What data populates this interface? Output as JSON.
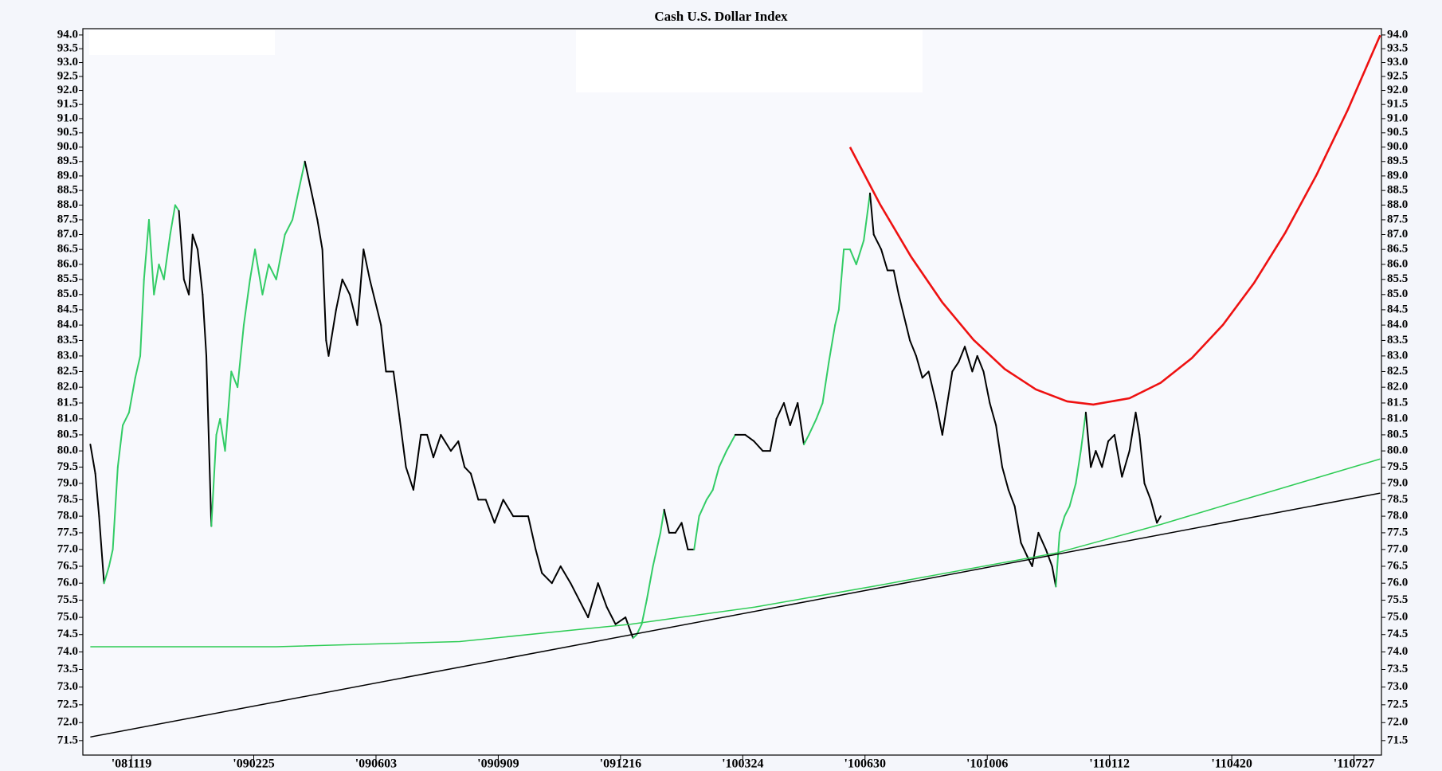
{
  "chart_data": {
    "type": "line",
    "title": "Cash U.S. Dollar Index",
    "log_y": true,
    "xlim": [
      -39,
      1002
    ],
    "xticks": [
      {
        "value": 0,
        "label": "'081119"
      },
      {
        "value": 98,
        "label": "'090225"
      },
      {
        "value": 196,
        "label": "'090603"
      },
      {
        "value": 294,
        "label": "'090909"
      },
      {
        "value": 392,
        "label": "'091216"
      },
      {
        "value": 490,
        "label": "'100324"
      },
      {
        "value": 588,
        "label": "'100630"
      },
      {
        "value": 686,
        "label": "'101006"
      },
      {
        "value": 784,
        "label": "'110112"
      },
      {
        "value": 882,
        "label": "'110420"
      },
      {
        "value": 980,
        "label": "'110727"
      }
    ],
    "ylim": [
      71.1,
      94.23
    ],
    "yticks": [
      71.5,
      {
        "value": 72,
        "label": "72.0"
      },
      72.5,
      {
        "value": 73,
        "label": "73.0"
      },
      73.5,
      {
        "value": 74,
        "label": "74.0"
      },
      74.5,
      {
        "value": 75,
        "label": "75.0"
      },
      75.5,
      {
        "value": 76,
        "label": "76.0"
      },
      76.5,
      {
        "value": 77,
        "label": "77.0"
      },
      77.5,
      {
        "value": 78,
        "label": "78.0"
      },
      78.5,
      {
        "value": 79,
        "label": "79.0"
      },
      79.5,
      {
        "value": 80,
        "label": "80.0"
      },
      80.5,
      {
        "value": 81,
        "label": "81.0"
      },
      81.5,
      {
        "value": 82,
        "label": "82.0"
      },
      82.5,
      {
        "value": 83,
        "label": "83.0"
      },
      83.5,
      {
        "value": 84,
        "label": "84.0"
      },
      84.5,
      {
        "value": 85,
        "label": "85.0"
      },
      85.5,
      {
        "value": 86,
        "label": "86.0"
      },
      86.5,
      {
        "value": 87,
        "label": "87.0"
      },
      87.5,
      {
        "value": 88,
        "label": "88.0"
      },
      88.5,
      {
        "value": 89,
        "label": "89.0"
      },
      89.5,
      {
        "value": 90,
        "label": "90.0"
      },
      90.5,
      {
        "value": 91,
        "label": "91.0"
      },
      91.5,
      {
        "value": 92,
        "label": "92.0"
      },
      92.5,
      {
        "value": 93,
        "label": "93.0"
      },
      93.5,
      {
        "value": 94,
        "label": "94.0"
      }
    ],
    "series": [
      {
        "x": [
          -33,
          -29,
          -26,
          -22,
          -18,
          -15,
          -11,
          -7,
          -2,
          3,
          7,
          10,
          14,
          18,
          22,
          26,
          31,
          35,
          38,
          42,
          46,
          49,
          53,
          57,
          60,
          64,
          68,
          71,
          75,
          80,
          85,
          90,
          95,
          99,
          105,
          110,
          116,
          123,
          129,
          134,
          139,
          144,
          149,
          153,
          156,
          158,
          164,
          169,
          175,
          181,
          186,
          191,
          197,
          200,
          204,
          210,
          215,
          220,
          226,
          232,
          237,
          242,
          248,
          256,
          262,
          267,
          272,
          278,
          284,
          291,
          298,
          306,
          313,
          318,
          324,
          329,
          337,
          344,
          352,
          359,
          366,
          374,
          381,
          388,
          396,
          402,
          405,
          409,
          413,
          418,
          424,
          427,
          431,
          436,
          441,
          446,
          451,
          455,
          461,
          466,
          471,
          477,
          484,
          492,
          499,
          506,
          512,
          517,
          523,
          528,
          534,
          539,
          543,
          549,
          554,
          559,
          564,
          567,
          571,
          576,
          581,
          587,
          592,
          595,
          601,
          606,
          611,
          615,
          621,
          624,
          629,
          634,
          639,
          645,
          650,
          654,
          658,
          663,
          668,
          674,
          678,
          683,
          688,
          693,
          698,
          703,
          708,
          713,
          718,
          722,
          727,
          733,
          738,
          741,
          744,
          748,
          752,
          757,
          761,
          765,
          769,
          773,
          778,
          783,
          788,
          794,
          800,
          805,
          808,
          812,
          817,
          822,
          825
        ],
        "values": [
          80.2,
          79.3,
          78.0,
          76.0,
          76.5,
          77.0,
          79.5,
          80.8,
          81.2,
          82.3,
          83.0,
          85.5,
          87.5,
          85.0,
          86.0,
          85.5,
          87.0,
          88.0,
          87.8,
          85.5,
          85.0,
          87.0,
          86.5,
          85.0,
          83.0,
          77.7,
          80.5,
          81.0,
          80.0,
          82.5,
          82.0,
          84.0,
          85.5,
          86.5,
          85.0,
          86.0,
          85.5,
          87.0,
          87.5,
          88.5,
          89.5,
          88.5,
          87.5,
          86.5,
          83.5,
          83.0,
          84.5,
          85.5,
          85.0,
          84.0,
          86.5,
          85.5,
          84.5,
          84.0,
          82.5,
          82.5,
          81.0,
          79.5,
          78.8,
          80.5,
          80.5,
          79.8,
          80.5,
          80.0,
          80.3,
          79.5,
          79.3,
          78.5,
          78.5,
          77.8,
          78.5,
          78.0,
          78.0,
          78.0,
          77.0,
          76.3,
          76.0,
          76.5,
          76.0,
          75.5,
          75.0,
          76.0,
          75.3,
          74.8,
          75.0,
          74.4,
          74.5,
          74.8,
          75.5,
          76.5,
          77.5,
          78.2,
          77.5,
          77.5,
          77.8,
          77.0,
          77.0,
          78.0,
          78.5,
          78.8,
          79.5,
          80.0,
          80.5,
          80.5,
          80.3,
          80.0,
          80.0,
          81.0,
          81.5,
          80.8,
          81.5,
          80.2,
          80.5,
          81.0,
          81.5,
          82.8,
          84.0,
          84.5,
          86.5,
          86.5,
          86.0,
          86.8,
          88.4,
          87.0,
          86.5,
          85.8,
          85.8,
          85.0,
          84.0,
          83.5,
          83.0,
          82.3,
          82.5,
          81.5,
          80.5,
          81.5,
          82.5,
          82.8,
          83.3,
          82.5,
          83.0,
          82.5,
          81.5,
          80.8,
          79.5,
          78.8,
          78.3,
          77.2,
          76.8,
          76.5,
          77.5,
          77.0,
          76.5,
          75.9,
          77.5,
          78.0,
          78.3,
          79.0,
          80.0,
          81.2,
          79.5,
          80.0,
          79.5,
          80.3,
          80.5,
          79.2,
          80.0,
          81.2,
          80.5,
          79.0,
          78.5,
          77.8,
          78.0
        ],
        "colors": [
          "#3c6",
          "#000",
          "#000",
          "#000",
          "#3c6",
          "#3c6",
          "#3c6",
          "#3c6",
          "#3c6",
          "#3c6",
          "#3c6",
          "#3c6",
          "#3c6",
          "#3c6",
          "#3c6",
          "#3c6",
          "#3c6",
          "#3c6",
          "#3c6",
          "#000",
          "#000",
          "#000",
          "#000",
          "#000",
          "#000",
          "#000",
          "#3c6",
          "#3c6",
          "#3c6",
          "#3c6",
          "#3c6",
          "#3c6",
          "#3c6",
          "#3c6",
          "#3c6",
          "#3c6",
          "#3c6",
          "#3c6",
          "#3c6",
          "#3c6",
          "#3c6",
          "#000",
          "#000",
          "#000",
          "#000",
          "#000",
          "#000",
          "#000",
          "#000",
          "#000",
          "#000",
          "#000",
          "#000",
          "#000",
          "#000",
          "#000",
          "#000",
          "#000",
          "#000",
          "#000",
          "#000",
          "#000",
          "#000",
          "#000",
          "#000",
          "#000",
          "#000",
          "#000",
          "#000",
          "#000",
          "#000",
          "#000",
          "#000",
          "#000",
          "#000",
          "#000",
          "#000",
          "#000",
          "#000",
          "#000",
          "#000",
          "#000",
          "#000",
          "#000",
          "#000",
          "#000",
          "#3c6",
          "#3c6",
          "#3c6",
          "#3c6",
          "#3c6",
          "#3c6",
          "#000",
          "#000",
          "#000",
          "#000",
          "#000",
          "#3c6",
          "#3c6",
          "#3c6",
          "#3c6",
          "#3c6",
          "#3c6",
          "#000",
          "#000",
          "#000",
          "#000",
          "#000",
          "#000",
          "#000",
          "#000",
          "#000",
          "#3c6",
          "#3c6",
          "#3c6",
          "#3c6",
          "#3c6",
          "#3c6",
          "#3c6",
          "#3c6",
          "#3c6",
          "#3c6",
          "#3c6",
          "#000",
          "#000",
          "#000",
          "#000",
          "#000",
          "#000",
          "#000",
          "#000",
          "#000",
          "#000",
          "#000",
          "#000",
          "#000",
          "#000",
          "#000",
          "#000",
          "#000",
          "#000",
          "#000",
          "#000",
          "#000",
          "#000",
          "#000",
          "#000",
          "#000",
          "#000",
          "#000",
          "#000",
          "#000",
          "#000",
          "#000",
          "#3c6",
          "#3c6",
          "#3c6",
          "#3c6",
          "#3c6",
          "#3c6",
          "#000",
          "#000",
          "#000",
          "#000",
          "#000",
          "#000",
          "#000",
          "#000",
          "#000",
          "#000",
          "#000",
          "#000",
          "#000"
        ],
        "width": 2
      },
      {
        "color": "#ee1111",
        "width": 2.6,
        "x": [
          576,
          600,
          625,
          650,
          675,
          700,
          725,
          750,
          771,
          800,
          825,
          850,
          875,
          900,
          925,
          950,
          975,
          1001
        ],
        "values": [
          90.0,
          88.03,
          86.25,
          84.74,
          83.52,
          82.58,
          81.93,
          81.55,
          81.45,
          81.65,
          82.14,
          82.93,
          84.01,
          85.39,
          87.07,
          89.04,
          91.31,
          93.99
        ]
      },
      {
        "color": "#2ecc55",
        "width": 1.5,
        "x": [
          -33,
          116,
          263,
          400,
          500,
          601,
          742,
          825,
          900,
          1001
        ],
        "values": [
          74.15,
          74.15,
          74.3,
          74.8,
          75.3,
          75.95,
          76.9,
          77.75,
          78.6,
          79.75
        ]
      },
      {
        "color": "#000000",
        "width": 1.5,
        "x": [
          -33,
          1001
        ],
        "values": [
          71.6,
          78.7
        ]
      }
    ]
  }
}
